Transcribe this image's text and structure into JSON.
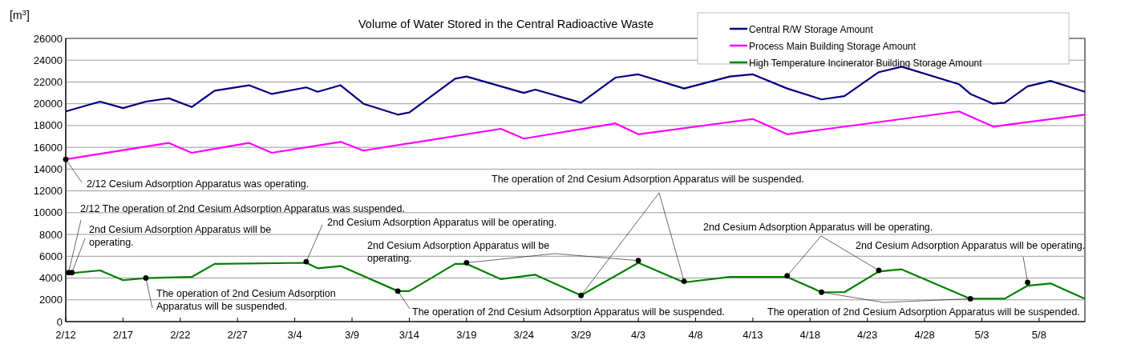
{
  "chart_data": {
    "type": "line",
    "title": "Volume of Water Stored in the Central Radioactive Waste",
    "ylabel": "[m$^{3}$]",
    "xlim": [
      "--02-12",
      "--05-12"
    ],
    "xticks": [
      {
        "value": "--02-12",
        "label": "2/12"
      },
      {
        "value": "--02-17",
        "label": "2/17"
      },
      {
        "value": "--02-22",
        "label": "2/22"
      },
      {
        "value": "--02-27",
        "label": "2/27"
      },
      {
        "value": "--03-04",
        "label": "3/4"
      },
      {
        "value": "--03-09",
        "label": "3/9"
      },
      {
        "value": "--03-14",
        "label": "3/14"
      },
      {
        "value": "--03-19",
        "label": "3/19"
      },
      {
        "value": "--03-24",
        "label": "3/24"
      },
      {
        "value": "--03-29",
        "label": "3/29"
      },
      {
        "value": "--04-03",
        "label": "4/3"
      },
      {
        "value": "--04-08",
        "label": "4/8"
      },
      {
        "value": "--04-13",
        "label": "4/13"
      },
      {
        "value": "--04-18",
        "label": "4/18"
      },
      {
        "value": "--04-23",
        "label": "4/23"
      },
      {
        "value": "--04-28",
        "label": "4/28"
      },
      {
        "value": "--05-03",
        "label": "5/3"
      },
      {
        "value": "--05-08",
        "label": "5/8"
      }
    ],
    "ylim": [
      0,
      26000
    ],
    "yticks": [
      0,
      2000,
      4000,
      6000,
      8000,
      10000,
      12000,
      14000,
      16000,
      18000,
      20000,
      22000,
      24000,
      26000
    ],
    "grid": "y",
    "legend": "top right",
    "marker": "none",
    "line_style": "solid",
    "series": [
      {
        "name": "Central R/W Storage Amount",
        "color": "#000080",
        "x": [
          "--02-12",
          "--02-15",
          "--02-17",
          "--02-19",
          "--02-21",
          "--02-23",
          "--02-25",
          "--02-28",
          "--03-02",
          "--03-05",
          "--03-06",
          "--03-08",
          "--03-10",
          "--03-13",
          "--03-14",
          "--03-18",
          "--03-19",
          "--03-24",
          "--03-25",
          "--03-29",
          "--04-01",
          "--04-03",
          "--04-07",
          "--04-11",
          "--04-13",
          "--04-16",
          "--04-19",
          "--04-21",
          "--04-24",
          "--04-26",
          "--05-01",
          "--05-02",
          "--05-04",
          "--05-05",
          "--05-07",
          "--05-09",
          "--05-12"
        ],
        "values": [
          19300,
          20200,
          19600,
          20200,
          20500,
          19700,
          21200,
          21700,
          20900,
          21500,
          21100,
          21700,
          20000,
          19000,
          19200,
          22300,
          22500,
          21000,
          21300,
          20100,
          22400,
          22700,
          21400,
          22500,
          22700,
          21400,
          20400,
          20700,
          22900,
          23400,
          21800,
          20900,
          20000,
          20100,
          21600,
          22100,
          21100
        ]
      },
      {
        "name": "Process Main Building Storage Amount",
        "color": "#ff00ff",
        "x": [
          "--02-12",
          "--02-21",
          "--02-23",
          "--02-28",
          "--03-02",
          "--03-08",
          "--03-10",
          "--03-22",
          "--03-24",
          "--04-01",
          "--04-03",
          "--04-13",
          "--04-16",
          "--05-01",
          "--05-04",
          "--05-12"
        ],
        "values": [
          14900,
          16400,
          15500,
          16400,
          15500,
          16500,
          15700,
          17700,
          16800,
          18200,
          17200,
          18600,
          17200,
          19300,
          17900,
          19000
        ]
      },
      {
        "name": "High Temperature Incinerator Building Storage Amount",
        "color": "#008000",
        "x": [
          "--02-12",
          "--02-15",
          "--02-17",
          "--02-19",
          "--02-23",
          "--02-25",
          "--03-05",
          "--03-06",
          "--03-08",
          "--03-13",
          "--03-14",
          "--03-18",
          "--03-19",
          "--03-22",
          "--03-25",
          "--03-29",
          "--04-03",
          "--04-07",
          "--04-11",
          "--04-13",
          "--04-16",
          "--04-19",
          "--04-21",
          "--04-24",
          "--04-26",
          "--05-02",
          "--05-05",
          "--05-07",
          "--05-09",
          "--05-12"
        ],
        "values": [
          4400,
          4700,
          3800,
          4000,
          4100,
          5300,
          5400,
          4900,
          5100,
          2800,
          2800,
          5300,
          5300,
          3900,
          4300,
          2400,
          5400,
          3600,
          4100,
          4100,
          4100,
          2700,
          2700,
          4600,
          4800,
          2100,
          2100,
          3300,
          3500,
          2100
        ]
      },
      {
        "type": "scatter",
        "marker": "circle",
        "color": "#000000",
        "x": [
          "--02-12",
          "--02-12T06:00",
          "--02-12T13:00",
          "--02-19",
          "--03-05",
          "--03-13",
          "--03-19",
          "--04-03",
          "--03-29",
          "--04-07",
          "--04-16",
          "--04-24",
          "--04-19",
          "--05-02",
          "--05-07"
        ],
        "values": [
          14900,
          4500,
          4500,
          4000,
          5500,
          2800,
          5400,
          5600,
          2400,
          3700,
          4200,
          4700,
          2700,
          2100,
          3600
        ]
      }
    ],
    "annotations": [
      {
        "text": "2/12  Cesium Adsorption Apparatus was operating.",
        "x": "--02-12",
        "y": 14900
      },
      {
        "text": "2/12  The operation of 2nd Cesium Adsorption Apparatus was suspended.",
        "x": "--02-12T06:00",
        "y": 4500
      },
      {
        "text": "2nd Cesium Adsorption Apparatus will be operating.",
        "x": "--02-12T13:00",
        "y": 4500
      },
      {
        "text": "The operation of 2nd Cesium Adsorption Apparatus will be suspended.",
        "x": "--02-19",
        "y": 4000
      },
      {
        "text": "2nd Cesium Adsorption Apparatus will be operating.",
        "x": "--03-05",
        "y": 5500
      },
      {
        "text": "The operation of 2nd Cesium Adsorption Apparatus will be suspended.",
        "x": "--03-13",
        "y": 2800
      },
      {
        "text": "2nd Cesium Adsorption Apparatus will be operating.",
        "x": "--03-19",
        "y": 5400
      },
      {
        "text": "The operation of 2nd Cesium Adsorption Apparatus will be suspended.",
        "x": "--03-29",
        "y": 2400
      },
      {
        "text": "2nd Cesium Adsorption Apparatus will be operating.",
        "x": "--04-16",
        "y": 4200
      },
      {
        "text": "The operation of 2nd Cesium Adsorption Apparatus will be suspended.",
        "x": "--04-19",
        "y": 2700
      },
      {
        "text": "2nd Cesium Adsorption Apparatus will be operating.",
        "x": "--05-07",
        "y": 3600
      }
    ]
  }
}
